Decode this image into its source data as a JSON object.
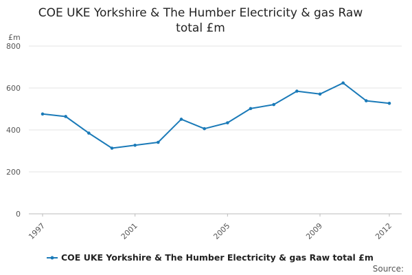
{
  "chart_data": {
    "type": "line",
    "title_lines": [
      "COE UKE Yorkshire & The Humber Electricity & gas Raw",
      "total £m"
    ],
    "y_unit": "£m",
    "ylim": [
      0,
      800
    ],
    "y_ticks": [
      "0",
      "200",
      "400",
      "600",
      "800"
    ],
    "x_tick_labels": [
      "1997",
      "2001",
      "2005",
      "2009",
      "2012"
    ],
    "grid": true,
    "legend_position": "bottom",
    "x": [
      1997,
      1998,
      1999,
      2000,
      2001,
      2002,
      2003,
      2004,
      2005,
      2006,
      2007,
      2008,
      2009,
      2010,
      2011,
      2012
    ],
    "series": [
      {
        "name": "COE UKE Yorkshire & The Humber Electricity & gas Raw total £m",
        "color": "#1a7ab8",
        "values": [
          476,
          464,
          385,
          313,
          327,
          341,
          451,
          406,
          434,
          502,
          521,
          585,
          571,
          624,
          539,
          527
        ]
      }
    ]
  },
  "source_label": "Source:"
}
